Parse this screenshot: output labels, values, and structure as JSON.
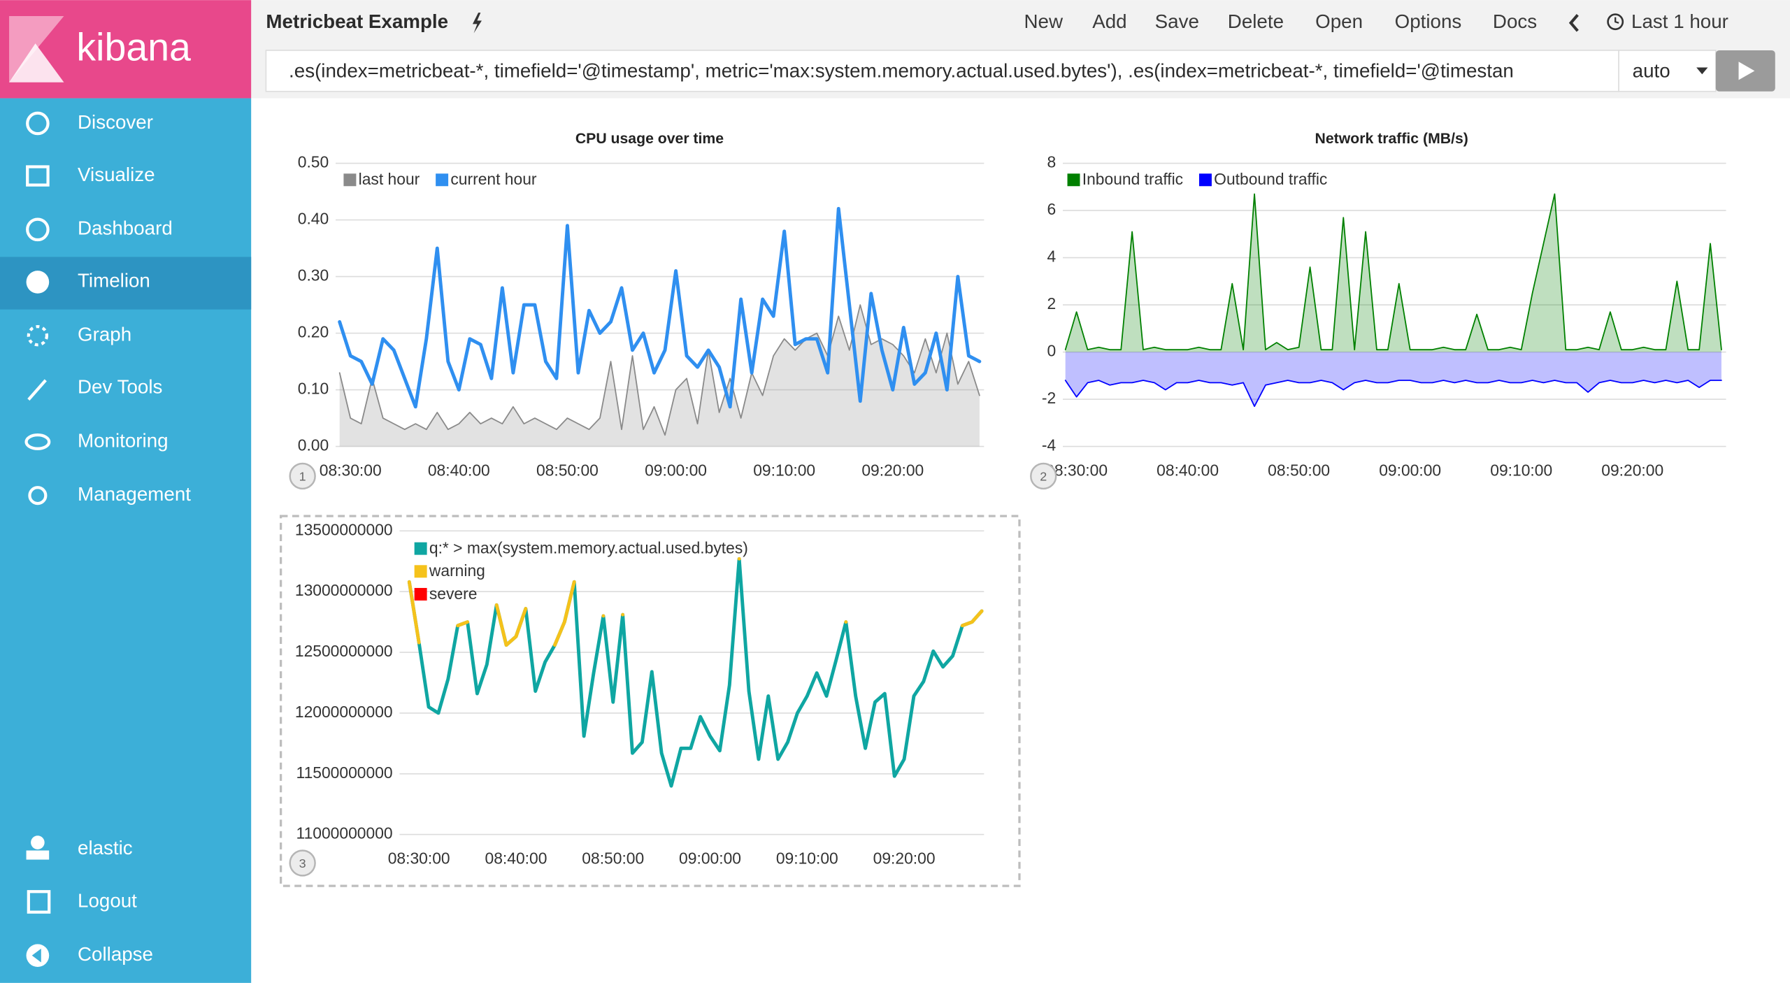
{
  "sidebar": {
    "brand": "kibana",
    "nav": [
      "Discover",
      "Visualize",
      "Dashboard",
      "Timelion",
      "Graph",
      "Dev Tools",
      "Monitoring",
      "Management"
    ],
    "account": [
      "elastic",
      "Logout",
      "Collapse"
    ]
  },
  "header": {
    "title": "Metricbeat Example",
    "menu": [
      "New",
      "Add",
      "Save",
      "Delete",
      "Open",
      "Options",
      "Docs"
    ],
    "time_range": "Last 1 hour"
  },
  "query": {
    "expression": ".es(index=metricbeat-*, timefield='@timestamp', metric='max:system.memory.actual.used.bytes'), .es(index=metricbeat-*, timefield='@timestan",
    "interval": "auto"
  },
  "chart_data": [
    {
      "type": "line",
      "title": "CPU usage over time",
      "panel": "1",
      "x": [
        "08:29:00",
        "08:30:00",
        "08:31:00",
        "08:32:00",
        "08:33:00",
        "08:34:00",
        "08:35:00",
        "08:36:00",
        "08:37:00",
        "08:38:00",
        "08:39:00",
        "08:40:00",
        "08:41:00",
        "08:42:00",
        "08:43:00",
        "08:44:00",
        "08:45:00",
        "08:46:00",
        "08:47:00",
        "08:48:00",
        "08:49:00",
        "08:50:00",
        "08:51:00",
        "08:52:00",
        "08:53:00",
        "08:54:00",
        "08:55:00",
        "08:56:00",
        "08:57:00",
        "08:58:00",
        "08:59:00",
        "09:00:00",
        "09:01:00",
        "09:02:00",
        "09:03:00",
        "09:04:00",
        "09:05:00",
        "09:06:00",
        "09:07:00",
        "09:08:00",
        "09:09:00",
        "09:10:00",
        "09:11:00",
        "09:12:00",
        "09:13:00",
        "09:14:00",
        "09:15:00",
        "09:16:00",
        "09:17:00",
        "09:18:00",
        "09:19:00",
        "09:20:00",
        "09:21:00",
        "09:22:00",
        "09:23:00",
        "09:24:00",
        "09:25:00",
        "09:26:00",
        "09:27:00",
        "09:28:00"
      ],
      "xlim": [
        "08:28:38",
        "09:28:25"
      ],
      "xticks": [
        "08:30:00",
        "08:40:00",
        "08:50:00",
        "09:00:00",
        "09:10:00",
        "09:20:00"
      ],
      "ylim": [
        0,
        0.5
      ],
      "yticks": [
        {
          "value": 0,
          "label": "0.00"
        },
        {
          "value": 0.1,
          "label": "0.10"
        },
        {
          "value": 0.2,
          "label": "0.20"
        },
        {
          "value": 0.3,
          "label": "0.30"
        },
        {
          "value": 0.4,
          "label": "0.40"
        },
        {
          "value": 0.5,
          "label": "0.50"
        }
      ],
      "grid": true,
      "legend": "top-left",
      "series": [
        {
          "name": "last hour",
          "color": "#8a8a8a",
          "fill": true,
          "values": [
            0.13,
            0.05,
            0.04,
            0.12,
            0.05,
            0.04,
            0.03,
            0.04,
            0.03,
            0.06,
            0.03,
            0.04,
            0.06,
            0.04,
            0.05,
            0.04,
            0.07,
            0.04,
            0.05,
            0.04,
            0.03,
            0.05,
            0.04,
            0.03,
            0.05,
            0.15,
            0.03,
            0.16,
            0.03,
            0.07,
            0.02,
            0.1,
            0.12,
            0.04,
            0.17,
            0.06,
            0.12,
            0.05,
            0.13,
            0.09,
            0.16,
            0.19,
            0.17,
            0.19,
            0.2,
            0.16,
            0.23,
            0.17,
            0.25,
            0.18,
            0.19,
            0.18,
            0.16,
            0.13,
            0.19,
            0.13,
            0.2,
            0.11,
            0.15,
            0.09
          ]
        },
        {
          "name": "current hour",
          "color": "#2f8ff0",
          "fill": false,
          "values": [
            0.22,
            0.16,
            0.15,
            0.11,
            0.19,
            0.17,
            0.12,
            0.07,
            0.19,
            0.35,
            0.15,
            0.1,
            0.19,
            0.18,
            0.12,
            0.28,
            0.13,
            0.25,
            0.25,
            0.15,
            0.12,
            0.39,
            0.13,
            0.24,
            0.2,
            0.22,
            0.28,
            0.17,
            0.2,
            0.13,
            0.17,
            0.31,
            0.16,
            0.14,
            0.17,
            0.14,
            0.07,
            0.26,
            0.13,
            0.26,
            0.23,
            0.38,
            0.18,
            0.19,
            0.19,
            0.13,
            0.42,
            0.25,
            0.08,
            0.27,
            0.17,
            0.1,
            0.21,
            0.11,
            0.13,
            0.2,
            0.1,
            0.3,
            0.16,
            0.15
          ]
        }
      ]
    },
    {
      "type": "line",
      "title": "Network traffic (MB/s)",
      "panel": "2",
      "x": [
        "08:29:00",
        "08:30:00",
        "08:31:00",
        "08:32:00",
        "08:33:00",
        "08:34:00",
        "08:35:00",
        "08:36:00",
        "08:37:00",
        "08:38:00",
        "08:39:00",
        "08:40:00",
        "08:41:00",
        "08:42:00",
        "08:43:00",
        "08:44:00",
        "08:45:00",
        "08:46:00",
        "08:47:00",
        "08:48:00",
        "08:49:00",
        "08:50:00",
        "08:51:00",
        "08:52:00",
        "08:53:00",
        "08:54:00",
        "08:55:00",
        "08:56:00",
        "08:57:00",
        "08:58:00",
        "08:59:00",
        "09:00:00",
        "09:01:00",
        "09:02:00",
        "09:03:00",
        "09:04:00",
        "09:05:00",
        "09:06:00",
        "09:07:00",
        "09:08:00",
        "09:09:00",
        "09:10:00",
        "09:11:00",
        "09:12:00",
        "09:13:00",
        "09:14:00",
        "09:15:00",
        "09:16:00",
        "09:17:00",
        "09:18:00",
        "09:19:00",
        "09:20:00",
        "09:21:00",
        "09:22:00",
        "09:23:00",
        "09:24:00",
        "09:25:00",
        "09:26:00",
        "09:27:00",
        "09:28:00"
      ],
      "xlim": [
        "08:28:46",
        "09:28:25"
      ],
      "xticks": [
        "08:30:00",
        "08:40:00",
        "08:50:00",
        "09:00:00",
        "09:10:00",
        "09:20:00"
      ],
      "ylim": [
        -4,
        8
      ],
      "yticks": [
        -4,
        -2,
        0,
        2,
        4,
        6,
        8
      ],
      "grid": true,
      "legend": "top-left",
      "series": [
        {
          "name": "Inbound traffic",
          "color": "#008000",
          "fill": true,
          "values": [
            0.1,
            1.7,
            0.1,
            0.2,
            0.1,
            0.1,
            5.1,
            0.1,
            0.2,
            0.1,
            0.1,
            0.1,
            0.2,
            0.1,
            0.1,
            2.9,
            0.1,
            6.7,
            0.1,
            0.4,
            0.1,
            0.2,
            3.6,
            0.1,
            0.1,
            5.7,
            0.1,
            5.1,
            0.1,
            0.1,
            2.9,
            0.1,
            0.1,
            0.1,
            0.2,
            0.1,
            0.1,
            1.6,
            0.1,
            0.1,
            0.2,
            0.1,
            2.5,
            4.6,
            6.7,
            0.1,
            0.1,
            0.2,
            0.1,
            1.7,
            0.1,
            0.1,
            0.2,
            0.1,
            0.1,
            3.0,
            0.1,
            0.1,
            4.6,
            0.1
          ]
        },
        {
          "name": "Outbound traffic",
          "color": "#0000ff",
          "fill": true,
          "values": [
            -1.2,
            -1.9,
            -1.3,
            -1.2,
            -1.4,
            -1.3,
            -1.3,
            -1.2,
            -1.3,
            -1.6,
            -1.3,
            -1.3,
            -1.2,
            -1.3,
            -1.3,
            -1.4,
            -1.3,
            -2.3,
            -1.4,
            -1.3,
            -1.2,
            -1.3,
            -1.3,
            -1.2,
            -1.3,
            -1.6,
            -1.3,
            -1.2,
            -1.3,
            -1.3,
            -1.2,
            -1.2,
            -1.3,
            -1.3,
            -1.2,
            -1.3,
            -1.2,
            -1.3,
            -1.3,
            -1.2,
            -1.3,
            -1.3,
            -1.2,
            -1.3,
            -1.2,
            -1.3,
            -1.3,
            -1.7,
            -1.3,
            -1.2,
            -1.3,
            -1.3,
            -1.2,
            -1.3,
            -1.2,
            -1.3,
            -1.2,
            -1.5,
            -1.2,
            -1.2
          ]
        }
      ]
    },
    {
      "type": "line",
      "panel": "3",
      "x": [
        "08:29:00",
        "08:30:00",
        "08:31:00",
        "08:32:00",
        "08:33:00",
        "08:34:00",
        "08:35:00",
        "08:36:00",
        "08:37:00",
        "08:38:00",
        "08:39:00",
        "08:40:00",
        "08:41:00",
        "08:42:00",
        "08:43:00",
        "08:44:00",
        "08:45:00",
        "08:46:00",
        "08:47:00",
        "08:48:00",
        "08:49:00",
        "08:50:00",
        "08:51:00",
        "08:52:00",
        "08:53:00",
        "08:54:00",
        "08:55:00",
        "08:56:00",
        "08:57:00",
        "08:58:00",
        "08:59:00",
        "09:00:00",
        "09:01:00",
        "09:02:00",
        "09:03:00",
        "09:04:00",
        "09:05:00",
        "09:06:00",
        "09:07:00",
        "09:08:00",
        "09:09:00",
        "09:10:00",
        "09:11:00",
        "09:12:00",
        "09:13:00",
        "09:14:00",
        "09:15:00",
        "09:16:00",
        "09:17:00",
        "09:18:00",
        "09:19:00",
        "09:20:00",
        "09:21:00",
        "09:22:00",
        "09:23:00",
        "09:24:00",
        "09:25:00",
        "09:26:00",
        "09:27:00",
        "09:28:00"
      ],
      "xlim": [
        "08:28:00",
        "09:28:14"
      ],
      "xticks": [
        "08:30:00",
        "08:40:00",
        "08:50:00",
        "09:00:00",
        "09:10:00",
        "09:20:00"
      ],
      "ylim": [
        11000000000,
        13500000000
      ],
      "yticks": [
        11000000000,
        11500000000,
        12000000000,
        12500000000,
        13000000000,
        13500000000
      ],
      "grid": true,
      "legend": "top-left",
      "series": [
        {
          "name": "q:* > max(system.memory.actual.used.bytes)",
          "color": "#0fa6a2",
          "fill": false,
          "values": [
            13080000000,
            12580000000,
            12050000000,
            12000000000,
            12280000000,
            12720000000,
            12750000000,
            12160000000,
            12400000000,
            12890000000,
            12560000000,
            12630000000,
            12860000000,
            12180000000,
            12420000000,
            12560000000,
            12750000000,
            13080000000,
            11810000000,
            12330000000,
            12800000000,
            12090000000,
            12810000000,
            11670000000,
            11760000000,
            12340000000,
            11670000000,
            11400000000,
            11710000000,
            11710000000,
            11970000000,
            11810000000,
            11690000000,
            12230000000,
            13270000000,
            12180000000,
            11620000000,
            12140000000,
            11620000000,
            11760000000,
            12000000000,
            12140000000,
            12330000000,
            12140000000,
            12440000000,
            12750000000,
            12140000000,
            11710000000,
            12090000000,
            12160000000,
            11480000000,
            11620000000,
            12140000000,
            12260000000,
            12510000000,
            12380000000,
            12470000000,
            12720000000,
            12750000000,
            12840000000
          ]
        },
        {
          "name": "warning",
          "color": "#f5c21b",
          "fill": false,
          "values": [
            13080000000,
            12580000000,
            null,
            null,
            null,
            12720000000,
            12750000000,
            null,
            null,
            12890000000,
            12560000000,
            12630000000,
            12860000000,
            null,
            null,
            12560000000,
            12750000000,
            13080000000,
            null,
            null,
            12800000000,
            null,
            12810000000,
            null,
            null,
            null,
            null,
            null,
            null,
            null,
            null,
            null,
            null,
            null,
            13270000000,
            null,
            null,
            null,
            null,
            null,
            null,
            null,
            null,
            null,
            null,
            12750000000,
            null,
            null,
            null,
            null,
            null,
            null,
            null,
            null,
            null,
            null,
            null,
            12720000000,
            12750000000,
            12840000000
          ]
        },
        {
          "name": "severe",
          "color": "#ff0000",
          "fill": false,
          "values": [
            null,
            null,
            null,
            null,
            null,
            null,
            null,
            null,
            null,
            null,
            null,
            null,
            null,
            null,
            null,
            null,
            null,
            null,
            null,
            null,
            null,
            null,
            null,
            null,
            null,
            null,
            null,
            null,
            null,
            null,
            null,
            null,
            null,
            null,
            null,
            null,
            null,
            null,
            null,
            null,
            null,
            null,
            null,
            null,
            null,
            null,
            null,
            null,
            null,
            null,
            null,
            null,
            null,
            null,
            null,
            null,
            null,
            null,
            null,
            null
          ]
        }
      ]
    }
  ]
}
